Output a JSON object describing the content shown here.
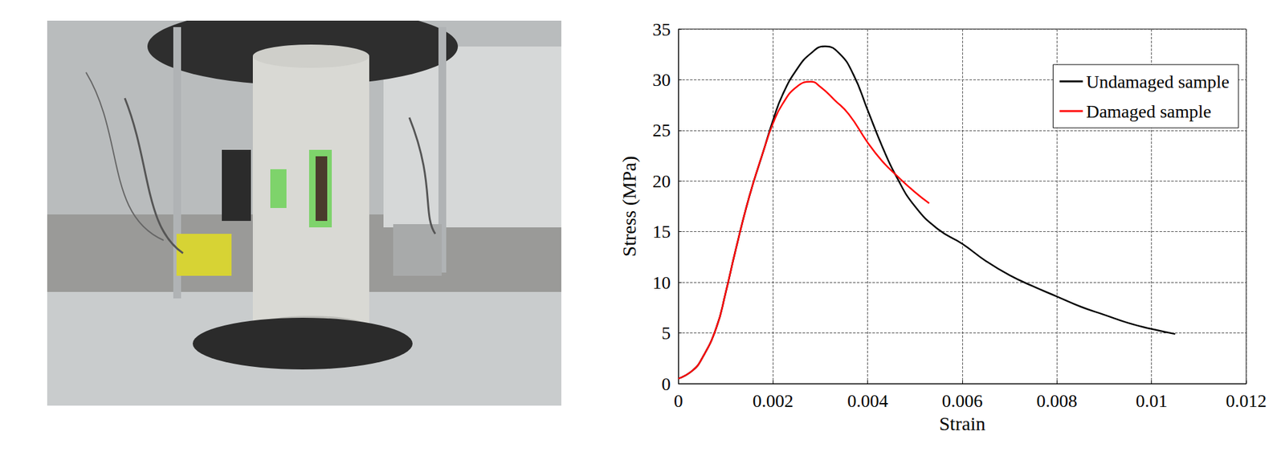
{
  "chart_data": {
    "type": "line",
    "xlabel": "Strain",
    "ylabel": "Stress (MPa)",
    "xlim": [
      0,
      0.012
    ],
    "xticks": [
      0,
      0.002,
      0.004,
      0.006,
      0.008,
      0.01,
      0.012
    ],
    "ylim": [
      0,
      35
    ],
    "yticks": [
      0,
      5,
      10,
      15,
      20,
      25,
      30,
      35
    ],
    "grid": true,
    "legend": "top-right",
    "series": [
      {
        "name": "Undamaged sample",
        "color": "#000000",
        "x": [
          0,
          0.0003,
          0.0005,
          0.0008,
          0.001,
          0.0012,
          0.0015,
          0.0018,
          0.002,
          0.0022,
          0.0025,
          0.0028,
          0.0031,
          0.0034,
          0.0037,
          0.004,
          0.0043,
          0.0046,
          0.005,
          0.0055,
          0.006,
          0.0065,
          0.007,
          0.0075,
          0.008,
          0.0085,
          0.009,
          0.0095,
          0.01,
          0.0105
        ],
        "values": [
          0.5,
          1.3,
          2.5,
          5.5,
          9,
          13,
          18.5,
          23,
          26,
          28.5,
          31,
          32.6,
          33.3,
          32.6,
          30.5,
          27,
          23.5,
          20.5,
          17.5,
          15.2,
          13.8,
          12.1,
          10.7,
          9.6,
          8.6,
          7.6,
          6.8,
          6.0,
          5.4,
          4.9
        ]
      },
      {
        "name": "Damaged sample",
        "color": "#ff0000",
        "x": [
          0,
          0.0003,
          0.0005,
          0.0008,
          0.001,
          0.0012,
          0.0015,
          0.0018,
          0.002,
          0.0022,
          0.0025,
          0.0028,
          0.003,
          0.0033,
          0.0036,
          0.004,
          0.0043,
          0.0046,
          0.005,
          0.0053
        ],
        "values": [
          0.5,
          1.3,
          2.5,
          5.5,
          9,
          13,
          18.5,
          23,
          25.7,
          27.6,
          29.3,
          29.8,
          29.3,
          28,
          26.6,
          23.8,
          22,
          20.6,
          18.9,
          17.8
        ]
      }
    ]
  }
}
